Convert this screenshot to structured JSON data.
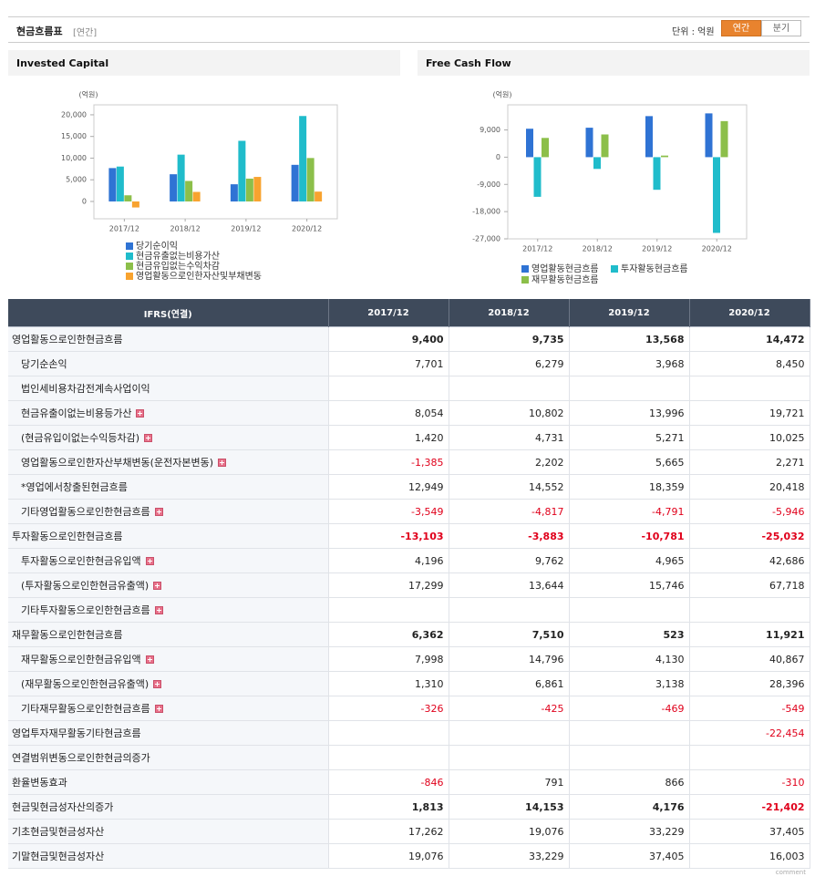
{
  "header": {
    "title": "현금흐름표",
    "subtitle": "[연간]",
    "unit": "단위 : 억원",
    "tabs": [
      "연간",
      "분기"
    ]
  },
  "chart_data": [
    {
      "type": "bar",
      "title": "Invested Capital",
      "y_label": "(억원)",
      "categories": [
        "2017/12",
        "2018/12",
        "2019/12",
        "2020/12"
      ],
      "series": [
        {
          "name": "당기순이익",
          "color": "#2f73d4",
          "values": [
            7701,
            6279,
            3968,
            8450
          ]
        },
        {
          "name": "현금유출없는비용가산",
          "color": "#20bccb",
          "values": [
            8054,
            10802,
            13996,
            19721
          ]
        },
        {
          "name": "현금유입없는수익차감",
          "color": "#8cbf4a",
          "values": [
            1420,
            4731,
            5271,
            10025
          ]
        },
        {
          "name": "영업활동으로인한자산및부채변동",
          "color": "#f8a32f",
          "values": [
            -1385,
            2202,
            5665,
            2271
          ]
        }
      ],
      "ylim": [
        -4000,
        22300
      ],
      "yticks": [
        0,
        {
          "value": 5000,
          "label": "5,000"
        },
        {
          "value": 10000,
          "label": "10,000"
        },
        {
          "value": 15000,
          "label": "15,000"
        },
        {
          "value": 20000,
          "label": "20,000"
        }
      ],
      "grid": false
    },
    {
      "type": "bar",
      "title": "Free Cash Flow",
      "y_label": "(억원)",
      "categories": [
        "2017/12",
        "2018/12",
        "2019/12",
        "2020/12"
      ],
      "series": [
        {
          "name": "영업활동현금흐름",
          "color": "#2f73d4",
          "values": [
            9400,
            9735,
            13568,
            14472
          ]
        },
        {
          "name": "투자활동현금흐름",
          "color": "#20bccb",
          "values": [
            -13103,
            -3883,
            -10781,
            -25032
          ]
        },
        {
          "name": "재무활동현금흐름",
          "color": "#8cbf4a",
          "values": [
            6362,
            7510,
            523,
            11921
          ]
        }
      ],
      "ylim": [
        -27000,
        17300
      ],
      "yticks": [
        {
          "value": -27000,
          "label": "-27,000"
        },
        {
          "value": -18000,
          "label": "-18,000"
        },
        {
          "value": -9000,
          "label": "-9,000"
        },
        0,
        {
          "value": 9000,
          "label": "9,000"
        }
      ],
      "grid": false
    }
  ],
  "table": {
    "columns": [
      "IFRS(연결)",
      "2017/12",
      "2018/12",
      "2019/12",
      "2020/12"
    ],
    "rows": [
      {
        "label": "영업활동으로인한현금흐름",
        "level": 0,
        "bold": true,
        "values": [
          "9,400",
          "9,735",
          "13,568",
          "14,472"
        ]
      },
      {
        "label": "당기순손익",
        "level": 1,
        "values": [
          "7,701",
          "6,279",
          "3,968",
          "8,450"
        ]
      },
      {
        "label": "법인세비용차감전계속사업이익",
        "level": 1,
        "values": [
          null,
          null,
          null,
          null
        ]
      },
      {
        "label": "현금유출이없는비용등가산",
        "level": 1,
        "expandable": true,
        "values": [
          "8,054",
          "10,802",
          "13,996",
          "19,721"
        ]
      },
      {
        "label": "(현금유입이없는수익등차감)",
        "level": 1,
        "expandable": true,
        "values": [
          "1,420",
          "4,731",
          "5,271",
          "10,025"
        ]
      },
      {
        "label": "영업활동으로인한자산부채변동(운전자본변동)",
        "level": 1,
        "expandable": true,
        "values": [
          "-1,385",
          "2,202",
          "5,665",
          "2,271"
        ]
      },
      {
        "label": "*영업에서창출된현금흐름",
        "level": 1,
        "values": [
          "12,949",
          "14,552",
          "18,359",
          "20,418"
        ]
      },
      {
        "label": "기타영업활동으로인한현금흐름",
        "level": 1,
        "expandable": true,
        "values": [
          "-3,549",
          "-4,817",
          "-4,791",
          "-5,946"
        ]
      },
      {
        "label": "투자활동으로인한현금흐름",
        "level": 0,
        "bold": true,
        "values": [
          "-13,103",
          "-3,883",
          "-10,781",
          "-25,032"
        ]
      },
      {
        "label": "투자활동으로인한현금유입액",
        "level": 1,
        "expandable": true,
        "values": [
          "4,196",
          "9,762",
          "4,965",
          "42,686"
        ]
      },
      {
        "label": "(투자활동으로인한현금유출액)",
        "level": 1,
        "expandable": true,
        "values": [
          "17,299",
          "13,644",
          "15,746",
          "67,718"
        ]
      },
      {
        "label": "기타투자활동으로인한현금흐름",
        "level": 1,
        "expandable": true,
        "values": [
          null,
          null,
          null,
          null
        ]
      },
      {
        "label": "재무활동으로인한현금흐름",
        "level": 0,
        "bold": true,
        "values": [
          "6,362",
          "7,510",
          "523",
          "11,921"
        ]
      },
      {
        "label": "재무활동으로인한현금유입액",
        "level": 1,
        "expandable": true,
        "values": [
          "7,998",
          "14,796",
          "4,130",
          "40,867"
        ]
      },
      {
        "label": "(재무활동으로인한현금유출액)",
        "level": 1,
        "expandable": true,
        "values": [
          "1,310",
          "6,861",
          "3,138",
          "28,396"
        ]
      },
      {
        "label": "기타재무활동으로인한현금흐름",
        "level": 1,
        "expandable": true,
        "values": [
          "-326",
          "-425",
          "-469",
          "-549"
        ]
      },
      {
        "label": "영업투자재무활동기타현금흐름",
        "level": 0,
        "values": [
          null,
          null,
          null,
          "-22,454"
        ]
      },
      {
        "label": "연결범위변동으로인한현금의증가",
        "level": 0,
        "values": [
          null,
          null,
          null,
          null
        ]
      },
      {
        "label": "환율변동효과",
        "level": 0,
        "values": [
          "-846",
          "791",
          "866",
          "-310"
        ]
      },
      {
        "label": "현금및현금성자산의증가",
        "level": 0,
        "bold": true,
        "values": [
          "1,813",
          "14,153",
          "4,176",
          "-21,402"
        ]
      },
      {
        "label": "기초현금및현금성자산",
        "level": 0,
        "values": [
          "17,262",
          "19,076",
          "33,229",
          "37,405"
        ]
      },
      {
        "label": "기말현금및현금성자산",
        "level": 0,
        "values": [
          "19,076",
          "33,229",
          "37,405",
          "16,003"
        ]
      }
    ],
    "footer": "comment"
  }
}
